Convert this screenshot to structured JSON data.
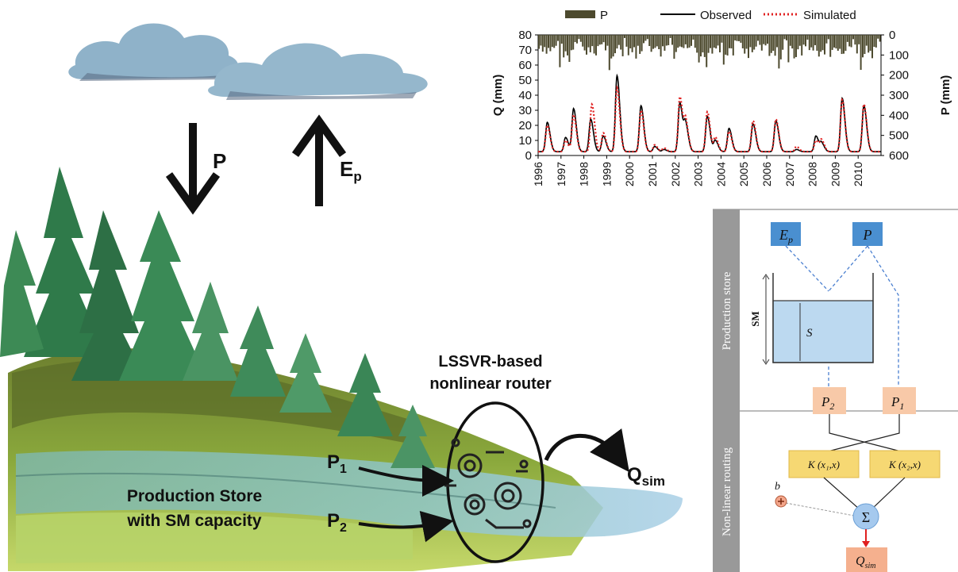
{
  "scene": {
    "precip_label": "P",
    "evap_label": "E",
    "evap_sub": "p",
    "router_title_line1": "LSSVR-based",
    "router_title_line2": "nonlinear router",
    "p1_label": "P",
    "p1_sub": "1",
    "p2_label": "P",
    "p2_sub": "2",
    "q_label": "Q",
    "q_sub": "sim",
    "store_line1": "Production Store",
    "store_line2": "with SM capacity"
  },
  "chart_data": {
    "type": "line",
    "legend": [
      "P",
      "Observed",
      "Simulated"
    ],
    "ylabel_left": "Q (mm)",
    "ylabel_right": "P (mm)",
    "ylim_left": [
      0,
      80
    ],
    "ylim_right": [
      600,
      0
    ],
    "yticks_left": [
      "0",
      "10",
      "20",
      "30",
      "40",
      "50",
      "60",
      "70",
      "80"
    ],
    "yticks_right": [
      "0",
      "100",
      "200",
      "300",
      "400",
      "500",
      "600"
    ],
    "xticks": [
      "1996",
      "1997",
      "1998",
      "1999",
      "2000",
      "2001",
      "2002",
      "2003",
      "2004",
      "2005",
      "2006",
      "2007",
      "2008",
      "2009",
      "2010"
    ],
    "x_range": [
      1996,
      2011
    ],
    "legend_position": "top",
    "series": [
      {
        "name": "Observed",
        "color": "#000000",
        "peaks": [
          [
            1996.4,
            22
          ],
          [
            1997.2,
            12
          ],
          [
            1997.55,
            31
          ],
          [
            1998.3,
            24
          ],
          [
            1998.85,
            13
          ],
          [
            1999.45,
            53
          ],
          [
            2000.5,
            33
          ],
          [
            2001.1,
            6
          ],
          [
            2001.5,
            4
          ],
          [
            2002.2,
            35
          ],
          [
            2002.45,
            20
          ],
          [
            2003.4,
            26
          ],
          [
            2003.75,
            10
          ],
          [
            2004.35,
            18
          ],
          [
            2005.4,
            21
          ],
          [
            2006.4,
            23
          ],
          [
            2007.3,
            4
          ],
          [
            2008.15,
            13
          ],
          [
            2008.4,
            8
          ],
          [
            2009.3,
            38
          ],
          [
            2010.25,
            33
          ]
        ]
      },
      {
        "name": "Simulated",
        "color": "#e02020",
        "peaks": [
          [
            1996.4,
            20
          ],
          [
            1997.2,
            10
          ],
          [
            1997.55,
            27
          ],
          [
            1998.35,
            34
          ],
          [
            1998.85,
            15
          ],
          [
            1999.45,
            45
          ],
          [
            2000.5,
            30
          ],
          [
            2001.1,
            7
          ],
          [
            2001.5,
            5
          ],
          [
            2002.2,
            39
          ],
          [
            2002.45,
            22
          ],
          [
            2003.4,
            29
          ],
          [
            2003.75,
            12
          ],
          [
            2004.35,
            16
          ],
          [
            2005.4,
            23
          ],
          [
            2006.4,
            24
          ],
          [
            2007.3,
            6
          ],
          [
            2008.15,
            10
          ],
          [
            2008.4,
            10
          ],
          [
            2009.3,
            37
          ],
          [
            2010.25,
            34
          ]
        ]
      }
    ],
    "precip_color": "#4d4a2e"
  },
  "model": {
    "production_label": "Production store",
    "routing_label": "Non-linear routing",
    "ep_label": "E",
    "ep_sub": "p",
    "p_label": "P",
    "sm_label": "SM",
    "s_label": "S",
    "p2_label": "P",
    "p2_sub": "2",
    "p1_label": "P",
    "p1_sub": "1",
    "k1_label": "K (x₁,x)",
    "k2_label": "K (x₂,x)",
    "b_label": "b",
    "sum_label": "Σ",
    "q_label": "Q",
    "q_sub": "sim"
  }
}
